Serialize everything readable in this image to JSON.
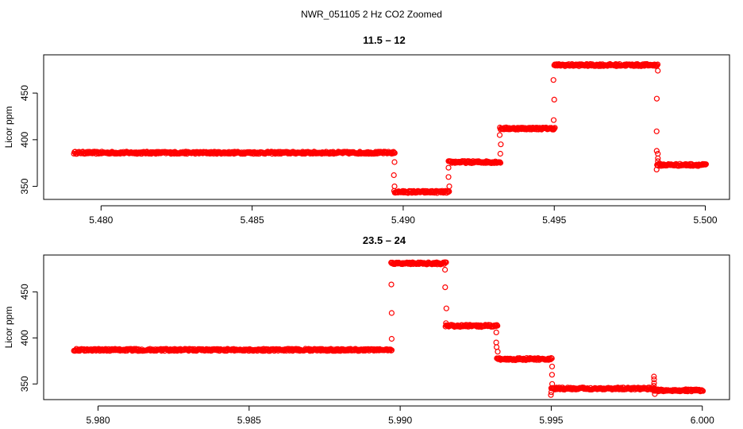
{
  "title": "NWR_051105  2 Hz CO2 Zoomed",
  "chart_data": [
    {
      "type": "scatter",
      "title": "11.5 – 12",
      "xlabel": "",
      "ylabel": "Licor ppm",
      "xlim": [
        5.4781,
        5.5008
      ],
      "ylim": [
        336,
        491
      ],
      "xticks": [
        5.48,
        5.485,
        5.49,
        5.495,
        5.5
      ],
      "xtick_labels": [
        "5.480",
        "5.485",
        "5.490",
        "5.495",
        "5.500"
      ],
      "yticks": [
        350,
        400,
        450
      ],
      "ytick_labels": [
        "350",
        "400",
        "450"
      ],
      "marker": "open-circle",
      "color": "#ff0000",
      "grid": false,
      "levels": [
        {
          "x_start": 5.4791,
          "x_end": 5.4897,
          "y": 386
        },
        {
          "x_start": 5.4897,
          "x_end": 5.4915,
          "y": 344
        },
        {
          "x_start": 5.4915,
          "x_end": 5.4932,
          "y": 376
        },
        {
          "x_start": 5.4932,
          "x_end": 5.495,
          "y": 412
        },
        {
          "x_start": 5.495,
          "x_end": 5.4984,
          "y": 480
        },
        {
          "x_start": 5.4984,
          "x_end": 5.5,
          "y": 373
        }
      ],
      "transitions": [
        {
          "x": 5.4897,
          "y": [
            376,
            362,
            350
          ]
        },
        {
          "x": 5.4915,
          "y": [
            350,
            360,
            370
          ]
        },
        {
          "x": 5.4932,
          "y": [
            385,
            395,
            405
          ]
        },
        {
          "x": 5.495,
          "y": [
            421,
            443,
            464
          ]
        },
        {
          "x": 5.4984,
          "y": [
            474,
            444,
            409,
            388,
            385,
            380,
            377,
            368
          ]
        }
      ]
    },
    {
      "type": "scatter",
      "title": "23.5 – 24",
      "xlabel": "",
      "ylabel": "Licor ppm",
      "xlim": [
        5.9782,
        6.0009
      ],
      "ylim": [
        333,
        490
      ],
      "xticks": [
        5.98,
        5.985,
        5.99,
        5.995,
        6.0
      ],
      "xtick_labels": [
        "5.980",
        "5.985",
        "5.990",
        "5.995",
        "6.000"
      ],
      "yticks": [
        350,
        400,
        450
      ],
      "ytick_labels": [
        "350",
        "400",
        "450"
      ],
      "marker": "open-circle",
      "color": "#ff0000",
      "grid": false,
      "levels": [
        {
          "x_start": 5.9792,
          "x_end": 5.9897,
          "y": 387
        },
        {
          "x_start": 5.9897,
          "x_end": 5.9915,
          "y": 481
        },
        {
          "x_start": 5.9915,
          "x_end": 5.9932,
          "y": 413
        },
        {
          "x_start": 5.9932,
          "x_end": 5.995,
          "y": 377
        },
        {
          "x_start": 5.995,
          "x_end": 5.9984,
          "y": 345
        },
        {
          "x_start": 5.9984,
          "x_end": 6.0,
          "y": 343
        }
      ],
      "transitions": [
        {
          "x": 5.9897,
          "y": [
            399,
            427,
            458
          ]
        },
        {
          "x": 5.9915,
          "y": [
            474,
            455,
            432,
            416
          ]
        },
        {
          "x": 5.9932,
          "y": [
            406,
            395,
            390,
            385
          ]
        },
        {
          "x": 5.995,
          "y": [
            369,
            360,
            350,
            341,
            338
          ]
        },
        {
          "x": 5.9984,
          "y": [
            358,
            355,
            351,
            348,
            339
          ]
        }
      ]
    }
  ]
}
